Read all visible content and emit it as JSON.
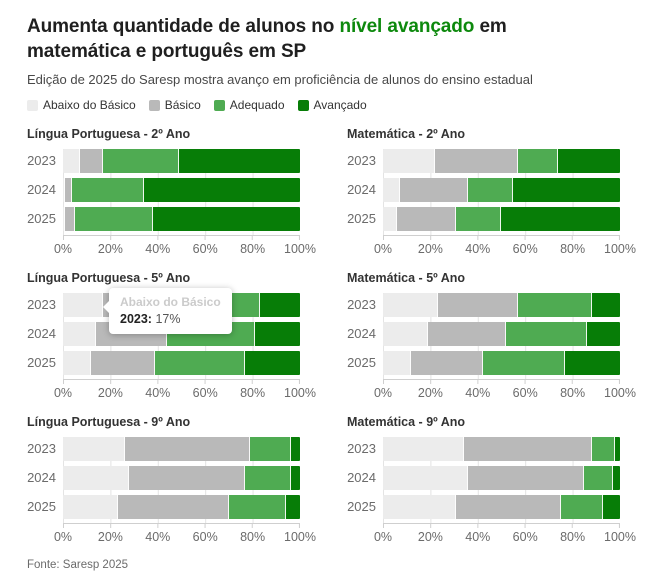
{
  "header": {
    "title": {
      "pre": "Aumenta quantidade de alunos no ",
      "highlight": "nível avançado",
      "post": " em matemática e português em SP"
    },
    "subtitle": "Edição de 2025 do Saresp mostra avanço em proficiência de alunos do ensino estadual"
  },
  "colors": {
    "title_highlight": "#0d890d",
    "abaixo_do_basico": "#ececec",
    "basico": "#b9b9b9",
    "adequado": "#4fab52",
    "avancado": "#077d07",
    "grid_line": "#e4e4e4",
    "axis_line": "#cfcfcf"
  },
  "legend": {
    "items": [
      {
        "label": "Abaixo do Básico",
        "color": "#ececec"
      },
      {
        "label": "Básico",
        "color": "#b9b9b9"
      },
      {
        "label": "Adequado",
        "color": "#4fab52"
      },
      {
        "label": "Avançado",
        "color": "#077d07"
      }
    ]
  },
  "axis": {
    "ticks": [
      "0%",
      "20%",
      "40%",
      "60%",
      "80%",
      "100%"
    ],
    "range": [
      0,
      100
    ]
  },
  "tooltip": {
    "chart_index": 2,
    "series": "Abaixo do Básico",
    "year": "2023:",
    "value": " 17%"
  },
  "footer": {
    "source": "Fonte: Saresp 2025"
  },
  "chart_data": [
    {
      "type": "bar",
      "stacked": true,
      "orientation": "horizontal",
      "title": "Língua Portuguesa - 2º Ano",
      "categories": [
        "2023",
        "2024",
        "2025"
      ],
      "xlim": [
        0,
        100
      ],
      "series": [
        {
          "name": "Abaixo do Básico",
          "values": [
            7,
            1,
            1
          ]
        },
        {
          "name": "Básico",
          "values": [
            10,
            3,
            4
          ]
        },
        {
          "name": "Adequado",
          "values": [
            32,
            30,
            33
          ]
        },
        {
          "name": "Avançado",
          "values": [
            51,
            66,
            62
          ]
        }
      ]
    },
    {
      "type": "bar",
      "stacked": true,
      "orientation": "horizontal",
      "title": "Matemática - 2º Ano",
      "categories": [
        "2023",
        "2024",
        "2025"
      ],
      "xlim": [
        0,
        100
      ],
      "series": [
        {
          "name": "Abaixo do Básico",
          "values": [
            22,
            7,
            6
          ]
        },
        {
          "name": "Básico",
          "values": [
            35,
            29,
            25
          ]
        },
        {
          "name": "Adequado",
          "values": [
            17,
            19,
            19
          ]
        },
        {
          "name": "Avançado",
          "values": [
            26,
            45,
            50
          ]
        }
      ]
    },
    {
      "type": "bar",
      "stacked": true,
      "orientation": "horizontal",
      "title": "Língua Portuguesa - 5º Ano",
      "categories": [
        "2023",
        "2024",
        "2025"
      ],
      "xlim": [
        0,
        100
      ],
      "series": [
        {
          "name": "Abaixo do Básico",
          "values": [
            17,
            14,
            12
          ]
        },
        {
          "name": "Básico",
          "values": [
            33,
            30,
            27
          ]
        },
        {
          "name": "Adequado",
          "values": [
            33,
            37,
            38
          ]
        },
        {
          "name": "Avançado",
          "values": [
            17,
            19,
            23
          ]
        }
      ]
    },
    {
      "type": "bar",
      "stacked": true,
      "orientation": "horizontal",
      "title": "Matemática - 5º Ano",
      "categories": [
        "2023",
        "2024",
        "2025"
      ],
      "xlim": [
        0,
        100
      ],
      "series": [
        {
          "name": "Abaixo do Básico",
          "values": [
            23,
            19,
            12
          ]
        },
        {
          "name": "Básico",
          "values": [
            34,
            33,
            30
          ]
        },
        {
          "name": "Adequado",
          "values": [
            31,
            34,
            35
          ]
        },
        {
          "name": "Avançado",
          "values": [
            12,
            14,
            23
          ]
        }
      ]
    },
    {
      "type": "bar",
      "stacked": true,
      "orientation": "horizontal",
      "title": "Língua Portuguesa - 9º Ano",
      "categories": [
        "2023",
        "2024",
        "2025"
      ],
      "xlim": [
        0,
        100
      ],
      "series": [
        {
          "name": "Abaixo do Básico",
          "values": [
            26,
            28,
            23
          ]
        },
        {
          "name": "Básico",
          "values": [
            53,
            49,
            47
          ]
        },
        {
          "name": "Adequado",
          "values": [
            17,
            19,
            24
          ]
        },
        {
          "name": "Avançado",
          "values": [
            4,
            4,
            6
          ]
        }
      ]
    },
    {
      "type": "bar",
      "stacked": true,
      "orientation": "horizontal",
      "title": "Matemática - 9º Ano",
      "categories": [
        "2023",
        "2024",
        "2025"
      ],
      "xlim": [
        0,
        100
      ],
      "series": [
        {
          "name": "Abaixo do Básico",
          "values": [
            34,
            36,
            31
          ]
        },
        {
          "name": "Básico",
          "values": [
            54,
            49,
            44
          ]
        },
        {
          "name": "Adequado",
          "values": [
            10,
            12,
            18
          ]
        },
        {
          "name": "Avançado",
          "values": [
            2,
            3,
            7
          ]
        }
      ]
    }
  ]
}
